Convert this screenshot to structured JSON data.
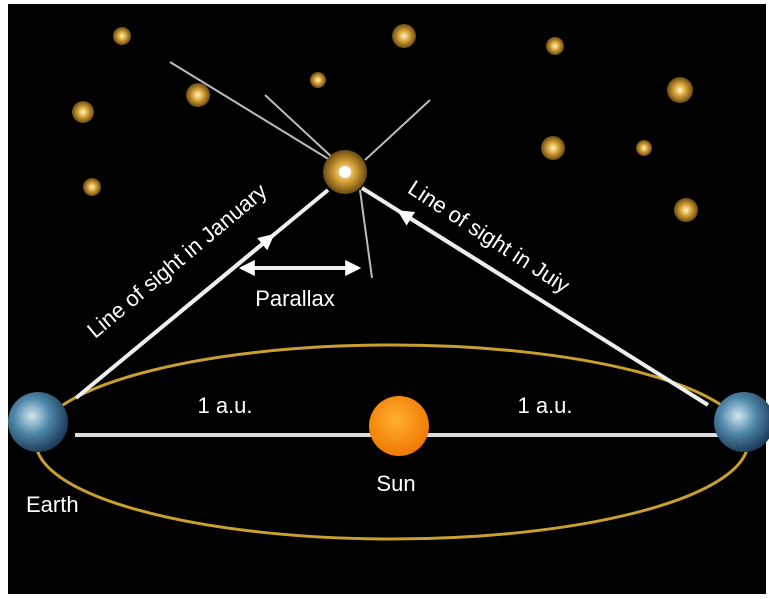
{
  "labels": {
    "line_january": "Line of sight in January",
    "line_july": "Line of sight in Juiy",
    "parallax": "Parallax",
    "au_left": "1 a.u.",
    "au_right": "1 a.u.",
    "sun": "Sun",
    "earth": "Earth"
  }
}
